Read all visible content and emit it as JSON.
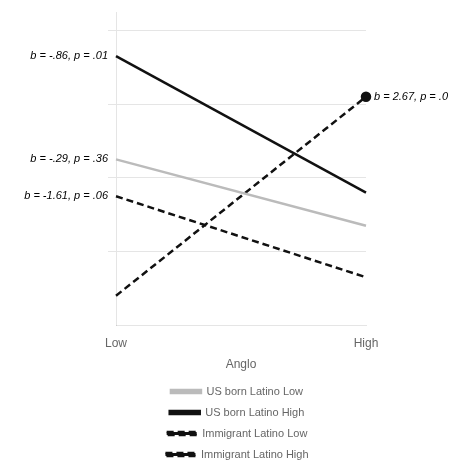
{
  "chart_data": {
    "type": "line",
    "xlabel": "Anglo",
    "categories": [
      "Low",
      "High"
    ],
    "series": [
      {
        "name": "US born Latino Low",
        "color": "#bbbbbb",
        "line_style": "solid",
        "marker": "none",
        "values": [
          5.0,
          3.2
        ]
      },
      {
        "name": "US born Latino High",
        "color": "#111111",
        "line_style": "solid",
        "marker": "none",
        "values": [
          7.8,
          4.1
        ]
      },
      {
        "name": "Immigrant Latino Low",
        "color": "#111111",
        "line_style": "dashed",
        "marker": "none",
        "values": [
          4.0,
          1.8
        ]
      },
      {
        "name": "Immigrant Latino High",
        "color": "#111111",
        "line_style": "dashed",
        "marker": "circle",
        "values": [
          1.3,
          6.7
        ]
      }
    ],
    "annotations": [
      {
        "text": "b = -.86, p = .01",
        "x": "Low",
        "y": 7.8
      },
      {
        "text": "b = -.29, p = .36",
        "x": "Low",
        "y": 5.0
      },
      {
        "text": "b = -1.61, p = .06",
        "x": "Low",
        "y": 4.0
      },
      {
        "text": "b = 2.67, p = .0",
        "x": "High",
        "y": 6.7
      }
    ],
    "ylim": [
      0.5,
      9.0
    ],
    "yticks": [
      2.5,
      4.5,
      6.5,
      8.5
    ],
    "tick_labels": "x",
    "grid": true,
    "legend": "bottom"
  }
}
